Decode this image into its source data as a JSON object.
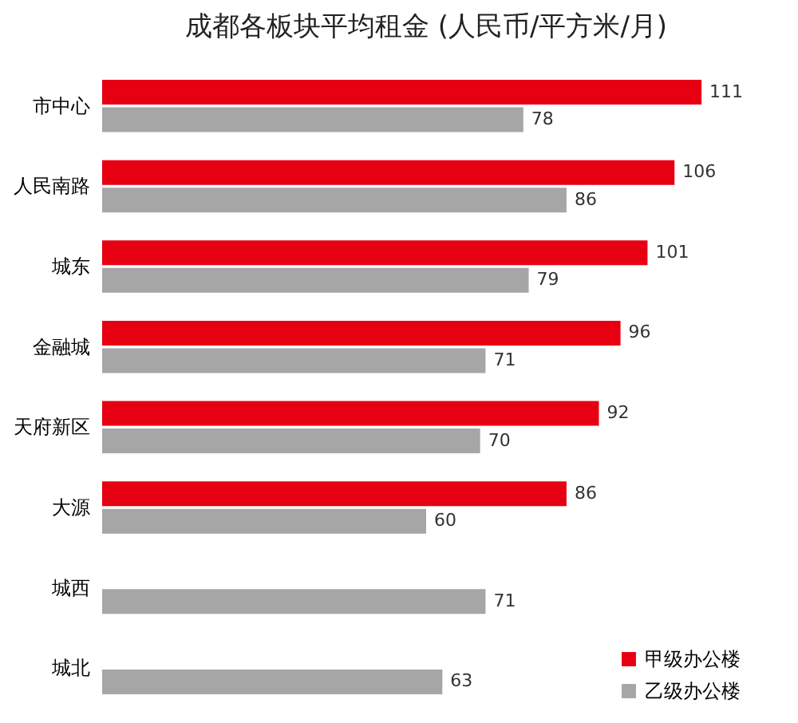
{
  "chart_data": {
    "type": "bar",
    "orientation": "horizontal",
    "title": "成都各板块平均租金 (人民币/平方米/月)",
    "categories": [
      "市中心",
      "人民南路",
      "城东",
      "金融城",
      "天府新区",
      "大源",
      "城西",
      "城北"
    ],
    "series": [
      {
        "name": "甲级办公楼",
        "color": "#e60012",
        "values": [
          111,
          106,
          101,
          96,
          92,
          86,
          null,
          null
        ]
      },
      {
        "name": "乙级办公楼",
        "color": "#a6a6a6",
        "values": [
          78,
          86,
          79,
          71,
          70,
          60,
          71,
          63
        ]
      }
    ],
    "data_labels": true,
    "legend": "bottom right"
  }
}
